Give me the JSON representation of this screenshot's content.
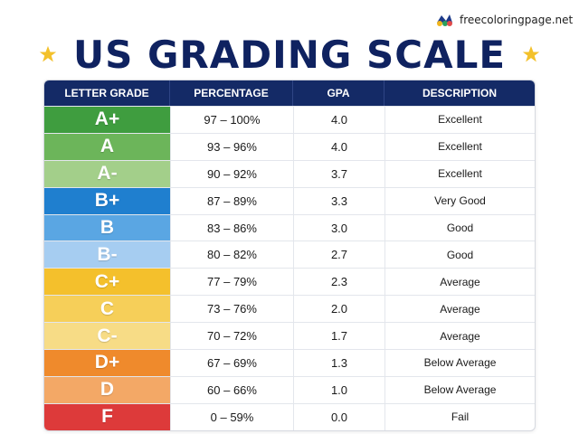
{
  "brand": {
    "text": "freecoloringpage.net",
    "icon": "paint-palette-icon"
  },
  "title": "US GRADING SCALE",
  "table": {
    "headers": [
      "LETTER GRADE",
      "PERCENTAGE",
      "GPA",
      "DESCRIPTION"
    ],
    "rows": [
      {
        "grade": "A+",
        "percentage": "97 – 100%",
        "gpa": "4.0",
        "description": "Excellent",
        "color": "#3f9d3f"
      },
      {
        "grade": "A",
        "percentage": "93 – 96%",
        "gpa": "4.0",
        "description": "Excellent",
        "color": "#6cb55a"
      },
      {
        "grade": "A-",
        "percentage": "90 – 92%",
        "gpa": "3.7",
        "description": "Excellent",
        "color": "#a3cf8a"
      },
      {
        "grade": "B+",
        "percentage": "87 – 89%",
        "gpa": "3.3",
        "description": "Very Good",
        "color": "#1f7fcf"
      },
      {
        "grade": "B",
        "percentage": "83 – 86%",
        "gpa": "3.0",
        "description": "Good",
        "color": "#5aa6e3"
      },
      {
        "grade": "B-",
        "percentage": "80 – 82%",
        "gpa": "2.7",
        "description": "Good",
        "color": "#a6cdf1"
      },
      {
        "grade": "C+",
        "percentage": "77 – 79%",
        "gpa": "2.3",
        "description": "Average",
        "color": "#f4c02c"
      },
      {
        "grade": "C",
        "percentage": "73 – 76%",
        "gpa": "2.0",
        "description": "Average",
        "color": "#f6cf59"
      },
      {
        "grade": "C-",
        "percentage": "70 – 72%",
        "gpa": "1.7",
        "description": "Average",
        "color": "#f7dc86"
      },
      {
        "grade": "D+",
        "percentage": "67 – 69%",
        "gpa": "1.3",
        "description": "Below Average",
        "color": "#ef8a2c"
      },
      {
        "grade": "D",
        "percentage": "60 – 66%",
        "gpa": "1.0",
        "description": "Below Average",
        "color": "#f3a866"
      },
      {
        "grade": "F",
        "percentage": "0 – 59%",
        "gpa": "0.0",
        "description": "Fail",
        "color": "#dd3a3a"
      }
    ]
  }
}
